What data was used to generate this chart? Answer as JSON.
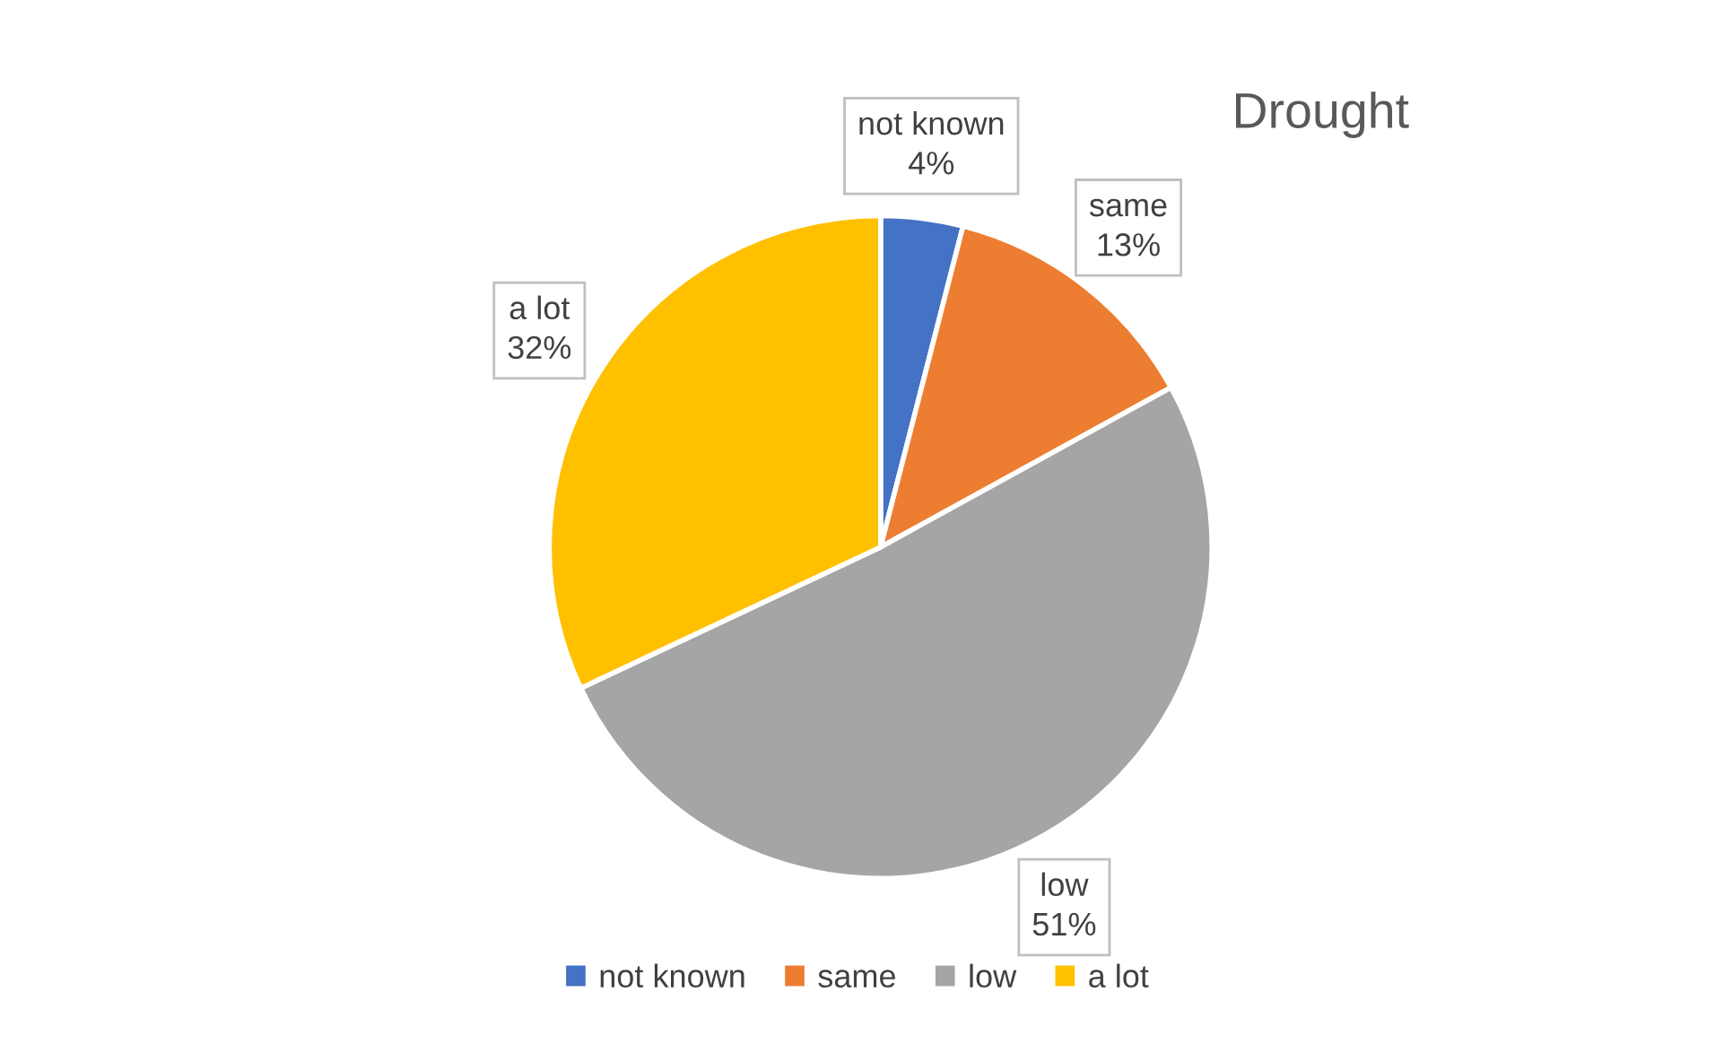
{
  "chart_data": {
    "type": "pie",
    "title": "Drought",
    "categories": [
      "not known",
      "same",
      "low",
      "a lot"
    ],
    "values": [
      4,
      13,
      51,
      32
    ],
    "value_labels": [
      "4%",
      "13%",
      "51%",
      "32%"
    ],
    "colors": [
      "#4472c4",
      "#ed7d31",
      "#a5a5a5",
      "#ffc000"
    ],
    "legend": "bottom"
  }
}
